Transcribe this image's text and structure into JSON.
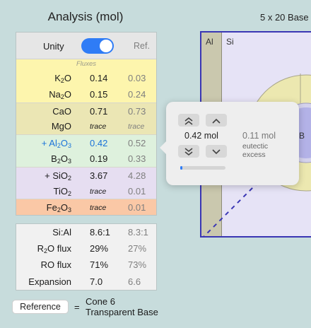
{
  "title": "Analysis (mol)",
  "grid_title": "5 x 20 Base",
  "header": {
    "unity_label": "Unity",
    "unity_on": true,
    "ref_label": "Ref."
  },
  "fluxes_label": "Fluxes",
  "oxides": [
    {
      "base": "K",
      "sub": "2",
      "tail": "O",
      "prefix": "",
      "value": "0.14",
      "ref": "0.03",
      "bg": "yellow",
      "trace": false,
      "ref_trace": false
    },
    {
      "base": "Na",
      "sub": "2",
      "tail": "O",
      "prefix": "",
      "value": "0.15",
      "ref": "0.24",
      "bg": "yellow",
      "trace": false,
      "ref_trace": false
    },
    {
      "base": "CaO",
      "sub": "",
      "tail": "",
      "prefix": "",
      "value": "0.71",
      "ref": "0.73",
      "bg": "olive",
      "trace": false,
      "ref_trace": false
    },
    {
      "base": "MgO",
      "sub": "",
      "tail": "",
      "prefix": "",
      "value": "trace",
      "ref": "trace",
      "bg": "olive",
      "trace": true,
      "ref_trace": true
    },
    {
      "base": "Al",
      "sub": "2",
      "tail": "O",
      "sub2": "3",
      "prefix": "+ ",
      "value": "0.42",
      "ref": "0.52",
      "bg": "green",
      "trace": false,
      "ref_trace": false,
      "highlight": true
    },
    {
      "base": "B",
      "sub": "2",
      "tail": "O",
      "sub2": "3",
      "prefix": "",
      "value": "0.19",
      "ref": "0.33",
      "bg": "green",
      "trace": false,
      "ref_trace": false
    },
    {
      "base": "SiO",
      "sub": "2",
      "tail": "",
      "prefix": "+ ",
      "value": "3.67",
      "ref": "4.28",
      "bg": "lav",
      "trace": false,
      "ref_trace": false
    },
    {
      "base": "TiO",
      "sub": "2",
      "tail": "",
      "prefix": "",
      "value": "trace",
      "ref": "0.01",
      "bg": "lav",
      "trace": true,
      "ref_trace": false
    },
    {
      "base": "Fe",
      "sub": "2",
      "tail": "O",
      "sub2": "3",
      "prefix": "",
      "value": "trace",
      "ref": "0.01",
      "bg": "salmon",
      "trace": true,
      "ref_trace": false
    }
  ],
  "ratios": [
    {
      "name": "Si:Al",
      "value": "8.6:1",
      "ref": "8.3:1"
    },
    {
      "name_base": "R",
      "name_sub": "2",
      "name_tail": "O flux",
      "value": "29%",
      "ref": "27%"
    },
    {
      "name": "RO flux",
      "value": "71%",
      "ref": "73%"
    },
    {
      "name": "Expansion",
      "value": "7.0",
      "ref": "6.6"
    }
  ],
  "reference": {
    "button": "Reference",
    "equals": "=",
    "line1": "Cone 6",
    "line2": "Transparent Base"
  },
  "chart": {
    "al_label": "Al",
    "si_label": "Si",
    "partial_label": "B"
  },
  "popover": {
    "value": "0.42 mol",
    "ref_value": "0.11 mol",
    "ref_desc_1": "eutectic",
    "ref_desc_2": "excess",
    "slider_fraction": 0.05
  },
  "colors": {
    "accent": "#2f7cf6",
    "chart_border": "#3a36b4"
  }
}
